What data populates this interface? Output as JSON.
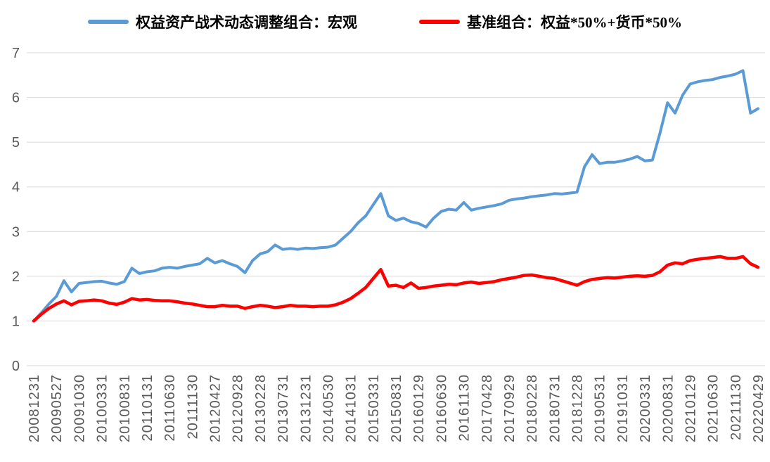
{
  "colors": {
    "background": "#FFFFFF",
    "grid": "#D9D9D9",
    "axis_text": "#595959",
    "portfolio_line": "#5B9BD5",
    "benchmark_line": "#FF0000"
  },
  "chart_data": {
    "type": "line",
    "title": "",
    "xlabel": "",
    "ylabel": "",
    "ylim": [
      0,
      7
    ],
    "y_ticks": [
      0,
      1,
      2,
      3,
      4,
      5,
      6,
      7
    ],
    "grid": "horizontal-only",
    "legend_position": "top-center",
    "x_labels": [
      "20081231",
      "20090527",
      "20091030",
      "20100331",
      "20100831",
      "20110131",
      "20110630",
      "20111130",
      "20120427",
      "20120928",
      "20130228",
      "20130731",
      "20131231",
      "20140530",
      "20141031",
      "20150331",
      "20150831",
      "20160129",
      "20160630",
      "20161130",
      "20170428",
      "20170929",
      "20180228",
      "20180731",
      "20181228",
      "20190531",
      "20191031",
      "20200331",
      "20200831",
      "20210129",
      "20210630",
      "20211130",
      "20220429"
    ],
    "label_stride": 3,
    "series": [
      {
        "name": "权益资产战术动态调整组合：宏观",
        "color": "#5B9BD5",
        "width": 4,
        "values": [
          1.0,
          1.18,
          1.38,
          1.55,
          1.9,
          1.65,
          1.84,
          1.86,
          1.88,
          1.89,
          1.85,
          1.82,
          1.88,
          2.18,
          2.06,
          2.1,
          2.12,
          2.18,
          2.2,
          2.18,
          2.22,
          2.25,
          2.28,
          2.4,
          2.3,
          2.35,
          2.28,
          2.22,
          2.08,
          2.35,
          2.5,
          2.55,
          2.7,
          2.6,
          2.62,
          2.6,
          2.63,
          2.62,
          2.64,
          2.65,
          2.7,
          2.85,
          3.0,
          3.2,
          3.35,
          3.6,
          3.85,
          3.35,
          3.25,
          3.3,
          3.22,
          3.18,
          3.1,
          3.3,
          3.45,
          3.5,
          3.48,
          3.65,
          3.48,
          3.52,
          3.55,
          3.58,
          3.62,
          3.7,
          3.73,
          3.75,
          3.78,
          3.8,
          3.82,
          3.85,
          3.84,
          3.86,
          3.88,
          4.45,
          4.72,
          4.52,
          4.55,
          4.55,
          4.58,
          4.62,
          4.68,
          4.58,
          4.6,
          5.2,
          5.88,
          5.65,
          6.05,
          6.3,
          6.35,
          6.38,
          6.4,
          6.45,
          6.48,
          6.52,
          6.6,
          5.65,
          5.75
        ]
      },
      {
        "name": "基准组合：权益*50%+货币*50%",
        "color": "#FF0000",
        "width": 4.5,
        "values": [
          1.0,
          1.15,
          1.28,
          1.38,
          1.45,
          1.36,
          1.44,
          1.45,
          1.47,
          1.45,
          1.4,
          1.37,
          1.42,
          1.5,
          1.47,
          1.48,
          1.46,
          1.45,
          1.45,
          1.43,
          1.4,
          1.38,
          1.35,
          1.32,
          1.32,
          1.35,
          1.33,
          1.33,
          1.28,
          1.32,
          1.35,
          1.33,
          1.3,
          1.32,
          1.35,
          1.33,
          1.33,
          1.32,
          1.33,
          1.33,
          1.36,
          1.42,
          1.5,
          1.62,
          1.75,
          1.95,
          2.15,
          1.78,
          1.8,
          1.75,
          1.85,
          1.73,
          1.75,
          1.78,
          1.8,
          1.82,
          1.81,
          1.85,
          1.87,
          1.84,
          1.86,
          1.88,
          1.92,
          1.95,
          1.98,
          2.02,
          2.03,
          2.0,
          1.97,
          1.95,
          1.9,
          1.85,
          1.8,
          1.88,
          1.93,
          1.95,
          1.97,
          1.96,
          1.98,
          2.0,
          2.01,
          2.0,
          2.02,
          2.1,
          2.25,
          2.3,
          2.28,
          2.35,
          2.38,
          2.4,
          2.42,
          2.44,
          2.4,
          2.4,
          2.44,
          2.28,
          2.2
        ]
      }
    ]
  }
}
